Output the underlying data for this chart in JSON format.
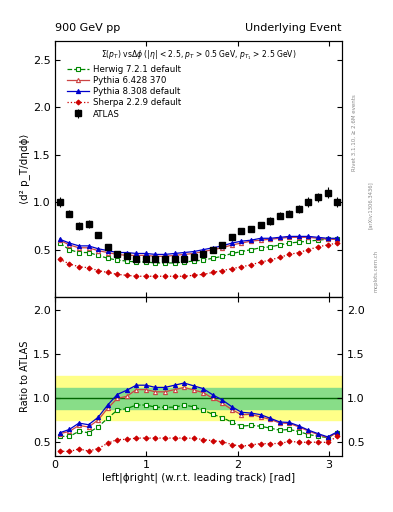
{
  "title_left": "900 GeV pp",
  "title_right": "Underlying Event",
  "ylabel_main": "⟨d² p_T/dηdϕ⟩",
  "ylabel_ratio": "Ratio to ATLAS",
  "xlabel": "left|ϕright| (w.r.t. leading track) [rad]",
  "right_label": "Rivet 3.1.10, ≥ 2.6M events",
  "arxiv_label": "[arXiv:1306.3436]",
  "mcplots_label": "mcplots.cern.ch",
  "xlim": [
    0,
    3.14159
  ],
  "ylim_main": [
    0.0,
    2.7
  ],
  "ylim_ratio": [
    0.35,
    2.15
  ],
  "yticks_main": [
    0.5,
    1.0,
    1.5,
    2.0,
    2.5
  ],
  "yticks_ratio": [
    0.5,
    1.0,
    1.5,
    2.0
  ],
  "atlas_x": [
    0.052,
    0.157,
    0.262,
    0.367,
    0.471,
    0.576,
    0.681,
    0.785,
    0.89,
    0.995,
    1.1,
    1.204,
    1.309,
    1.414,
    1.518,
    1.623,
    1.728,
    1.833,
    1.937,
    2.042,
    2.147,
    2.251,
    2.356,
    2.461,
    2.566,
    2.67,
    2.775,
    2.88,
    2.985,
    3.09
  ],
  "atlas_y": [
    1.0,
    0.88,
    0.75,
    0.77,
    0.65,
    0.53,
    0.45,
    0.43,
    0.4,
    0.4,
    0.4,
    0.4,
    0.4,
    0.4,
    0.42,
    0.45,
    0.5,
    0.55,
    0.63,
    0.7,
    0.72,
    0.76,
    0.8,
    0.86,
    0.88,
    0.93,
    1.0,
    1.05,
    1.1,
    1.0
  ],
  "atlas_yerr": [
    0.05,
    0.04,
    0.04,
    0.04,
    0.03,
    0.03,
    0.02,
    0.02,
    0.02,
    0.02,
    0.02,
    0.02,
    0.02,
    0.02,
    0.02,
    0.02,
    0.02,
    0.03,
    0.03,
    0.03,
    0.03,
    0.03,
    0.04,
    0.04,
    0.04,
    0.04,
    0.05,
    0.05,
    0.06,
    0.05
  ],
  "herwig_x": [
    0.052,
    0.157,
    0.262,
    0.367,
    0.471,
    0.576,
    0.681,
    0.785,
    0.89,
    0.995,
    1.1,
    1.204,
    1.309,
    1.414,
    1.518,
    1.623,
    1.728,
    1.833,
    1.937,
    2.042,
    2.147,
    2.251,
    2.356,
    2.461,
    2.566,
    2.67,
    2.775,
    2.88,
    2.985,
    3.09
  ],
  "herwig_y": [
    0.57,
    0.5,
    0.47,
    0.47,
    0.44,
    0.41,
    0.39,
    0.38,
    0.37,
    0.37,
    0.36,
    0.36,
    0.36,
    0.37,
    0.38,
    0.39,
    0.41,
    0.43,
    0.46,
    0.48,
    0.5,
    0.52,
    0.53,
    0.55,
    0.57,
    0.58,
    0.59,
    0.6,
    0.61,
    0.61
  ],
  "pythia6_x": [
    0.052,
    0.157,
    0.262,
    0.367,
    0.471,
    0.576,
    0.681,
    0.785,
    0.89,
    0.995,
    1.1,
    1.204,
    1.309,
    1.414,
    1.518,
    1.623,
    1.728,
    1.833,
    1.937,
    2.042,
    2.147,
    2.251,
    2.356,
    2.461,
    2.566,
    2.67,
    2.775,
    2.88,
    2.985,
    3.09
  ],
  "pythia6_y": [
    0.6,
    0.55,
    0.52,
    0.52,
    0.49,
    0.47,
    0.45,
    0.44,
    0.44,
    0.44,
    0.43,
    0.43,
    0.44,
    0.45,
    0.46,
    0.48,
    0.5,
    0.52,
    0.55,
    0.57,
    0.59,
    0.6,
    0.61,
    0.62,
    0.63,
    0.63,
    0.63,
    0.62,
    0.61,
    0.61
  ],
  "pythia8_x": [
    0.052,
    0.157,
    0.262,
    0.367,
    0.471,
    0.576,
    0.681,
    0.785,
    0.89,
    0.995,
    1.1,
    1.204,
    1.309,
    1.414,
    1.518,
    1.623,
    1.728,
    1.833,
    1.937,
    2.042,
    2.147,
    2.251,
    2.356,
    2.461,
    2.566,
    2.67,
    2.775,
    2.88,
    2.985,
    3.09
  ],
  "pythia8_y": [
    0.61,
    0.57,
    0.54,
    0.54,
    0.51,
    0.49,
    0.47,
    0.47,
    0.46,
    0.46,
    0.45,
    0.45,
    0.46,
    0.47,
    0.48,
    0.5,
    0.52,
    0.54,
    0.57,
    0.59,
    0.6,
    0.62,
    0.62,
    0.63,
    0.64,
    0.64,
    0.64,
    0.63,
    0.62,
    0.62
  ],
  "sherpa_x": [
    0.052,
    0.157,
    0.262,
    0.367,
    0.471,
    0.576,
    0.681,
    0.785,
    0.89,
    0.995,
    1.1,
    1.204,
    1.309,
    1.414,
    1.518,
    1.623,
    1.728,
    1.833,
    1.937,
    2.042,
    2.147,
    2.251,
    2.356,
    2.461,
    2.566,
    2.67,
    2.775,
    2.88,
    2.985,
    3.09
  ],
  "sherpa_y": [
    0.4,
    0.35,
    0.32,
    0.31,
    0.28,
    0.26,
    0.24,
    0.23,
    0.22,
    0.22,
    0.22,
    0.22,
    0.22,
    0.22,
    0.23,
    0.24,
    0.26,
    0.28,
    0.3,
    0.32,
    0.34,
    0.37,
    0.39,
    0.42,
    0.45,
    0.47,
    0.5,
    0.53,
    0.55,
    0.57
  ],
  "band_yellow_low": 0.75,
  "band_yellow_high": 1.25,
  "band_green_low": 0.88,
  "band_green_high": 1.12,
  "color_herwig": "#008800",
  "color_pythia6": "#cc4444",
  "color_pythia8": "#0000cc",
  "color_sherpa": "#cc0000",
  "color_atlas": "#000000",
  "legend_entries": [
    "ATLAS",
    "Herwig 7.2.1 default",
    "Pythia 6.428 370",
    "Pythia 8.308 default",
    "Sherpa 2.2.9 default"
  ]
}
